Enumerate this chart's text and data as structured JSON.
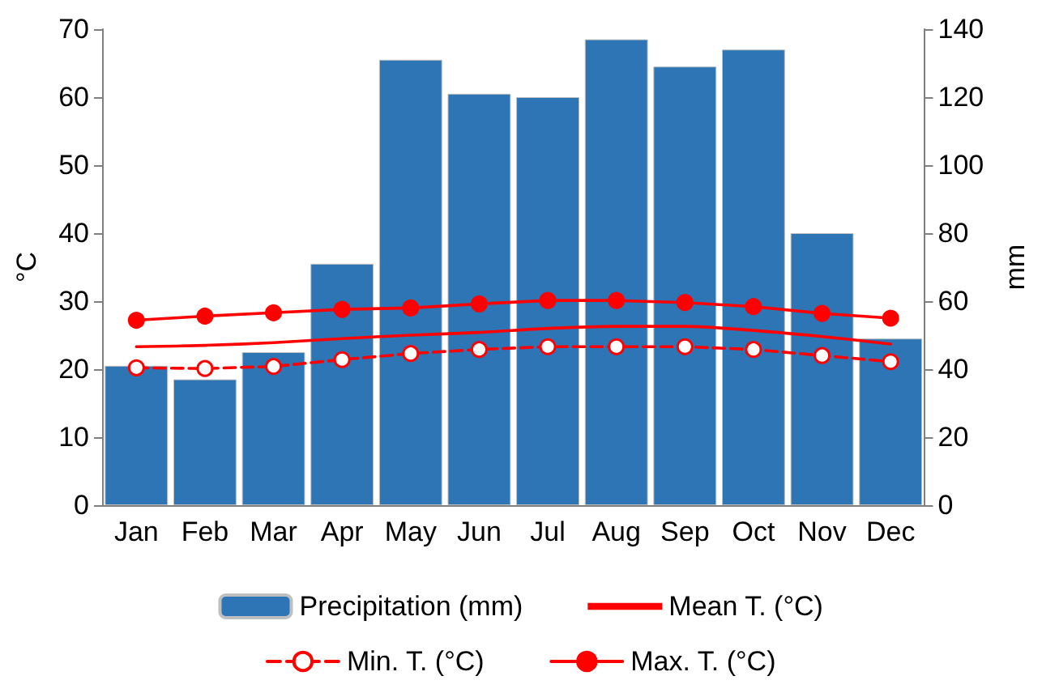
{
  "chart_data": {
    "type": "bar",
    "ylabel": "°C",
    "y2label": "mm",
    "categories": [
      "Jan",
      "Feb",
      "Mar",
      "Apr",
      "May",
      "Jun",
      "Jul",
      "Aug",
      "Sep",
      "Oct",
      "Nov",
      "Dec"
    ],
    "series": [
      {
        "name": "Precipitation (mm)",
        "axis": "y2",
        "color": "#2e75b6",
        "values": [
          41,
          37,
          45,
          71,
          131,
          121,
          120,
          137,
          129,
          134,
          80,
          49
        ]
      },
      {
        "name": "Mean T. (°C)",
        "type": "line",
        "color": "#ff0000",
        "marker": "none",
        "line_style": "solid",
        "values": [
          23.3,
          23.5,
          23.9,
          24.5,
          25.0,
          25.4,
          26.0,
          26.3,
          26.3,
          25.7,
          24.8,
          23.7
        ]
      },
      {
        "name": "Min. T. (°C)",
        "type": "line",
        "color": "#ff0000",
        "marker": "circle",
        "line_style": "dashed",
        "values": [
          20.2,
          20.1,
          20.4,
          21.4,
          22.3,
          22.9,
          23.3,
          23.3,
          23.3,
          22.9,
          22.0,
          21.1
        ]
      },
      {
        "name": "Max. T. (°C)",
        "type": "line",
        "color": "#ff0000",
        "marker": "circle",
        "line_style": "solid",
        "values": [
          27.2,
          27.8,
          28.3,
          28.8,
          29.0,
          29.6,
          30.1,
          30.1,
          29.8,
          29.2,
          28.2,
          27.5
        ]
      }
    ],
    "ylim": [
      0,
      70
    ],
    "yticks": [
      0,
      10,
      20,
      30,
      40,
      50,
      60,
      70
    ],
    "y2lim": [
      0,
      140
    ],
    "y2ticks": [
      0,
      20,
      40,
      60,
      80,
      100,
      120,
      140
    ],
    "grid": false,
    "legend": "bottom"
  }
}
